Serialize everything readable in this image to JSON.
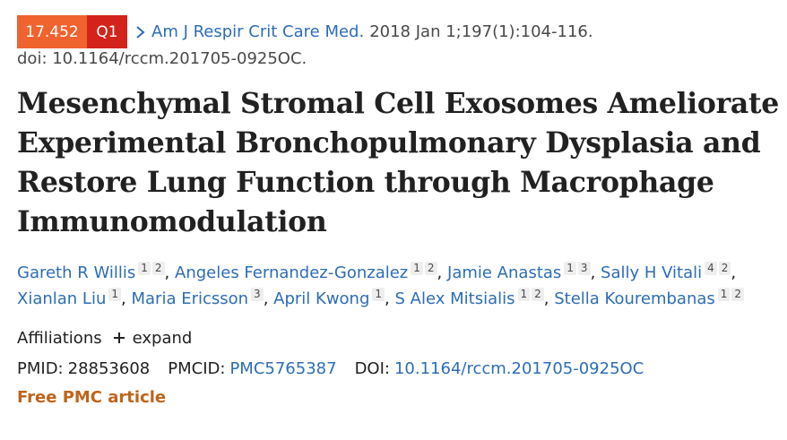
{
  "citation": {
    "impact_score": "17.452",
    "quartile": "Q1",
    "journal": "Am J Respir Crit Care Med.",
    "date_volume_pages": "2018 Jan 1;197(1):104-116.",
    "doi_line": "doi: 10.1164/rccm.201705-0925OC."
  },
  "article": {
    "title": "Mesenchymal Stromal Cell Exosomes Ameliorate Experimental Bronchopulmonary Dysplasia and Restore Lung Function through Macrophage Immunomodulation"
  },
  "authors": [
    {
      "name": "Gareth R Willis",
      "affiliations": [
        "1",
        "2"
      ],
      "sep": ","
    },
    {
      "name": "Angeles Fernandez-Gonzalez",
      "affiliations": [
        "1",
        "2"
      ],
      "sep": ","
    },
    {
      "name": "Jamie Anastas",
      "affiliations": [
        "1",
        "3"
      ],
      "sep": ","
    },
    {
      "name": "Sally H Vitali",
      "affiliations": [
        "4",
        "2"
      ],
      "sep": ","
    },
    {
      "name": "Xianlan Liu",
      "affiliations": [
        "1"
      ],
      "sep": ","
    },
    {
      "name": "Maria Ericsson",
      "affiliations": [
        "3"
      ],
      "sep": ","
    },
    {
      "name": "April Kwong",
      "affiliations": [
        "1"
      ],
      "sep": ","
    },
    {
      "name": "S Alex Mitsialis",
      "affiliations": [
        "1",
        "2"
      ],
      "sep": ","
    },
    {
      "name": "Stella Kourembanas",
      "affiliations": [
        "1",
        "2"
      ],
      "sep": ""
    }
  ],
  "affiliations": {
    "label": "Affiliations",
    "expand_label": "expand"
  },
  "identifiers": {
    "pmid_label": "PMID:",
    "pmid": "28853608",
    "pmcid_label": "PMCID:",
    "pmcid": "PMC5765387",
    "doi_label": "DOI:",
    "doi": "10.1164/rccm.201705-0925OC"
  },
  "free_article_label": "Free PMC article",
  "colors": {
    "score_badge": "#f0632e",
    "quartile_badge": "#d3231b",
    "link": "#2d6db5",
    "free_article": "#c0641b"
  },
  "icons": {
    "journal_chevron": "chevron-right-icon",
    "expand": "plus-icon"
  }
}
